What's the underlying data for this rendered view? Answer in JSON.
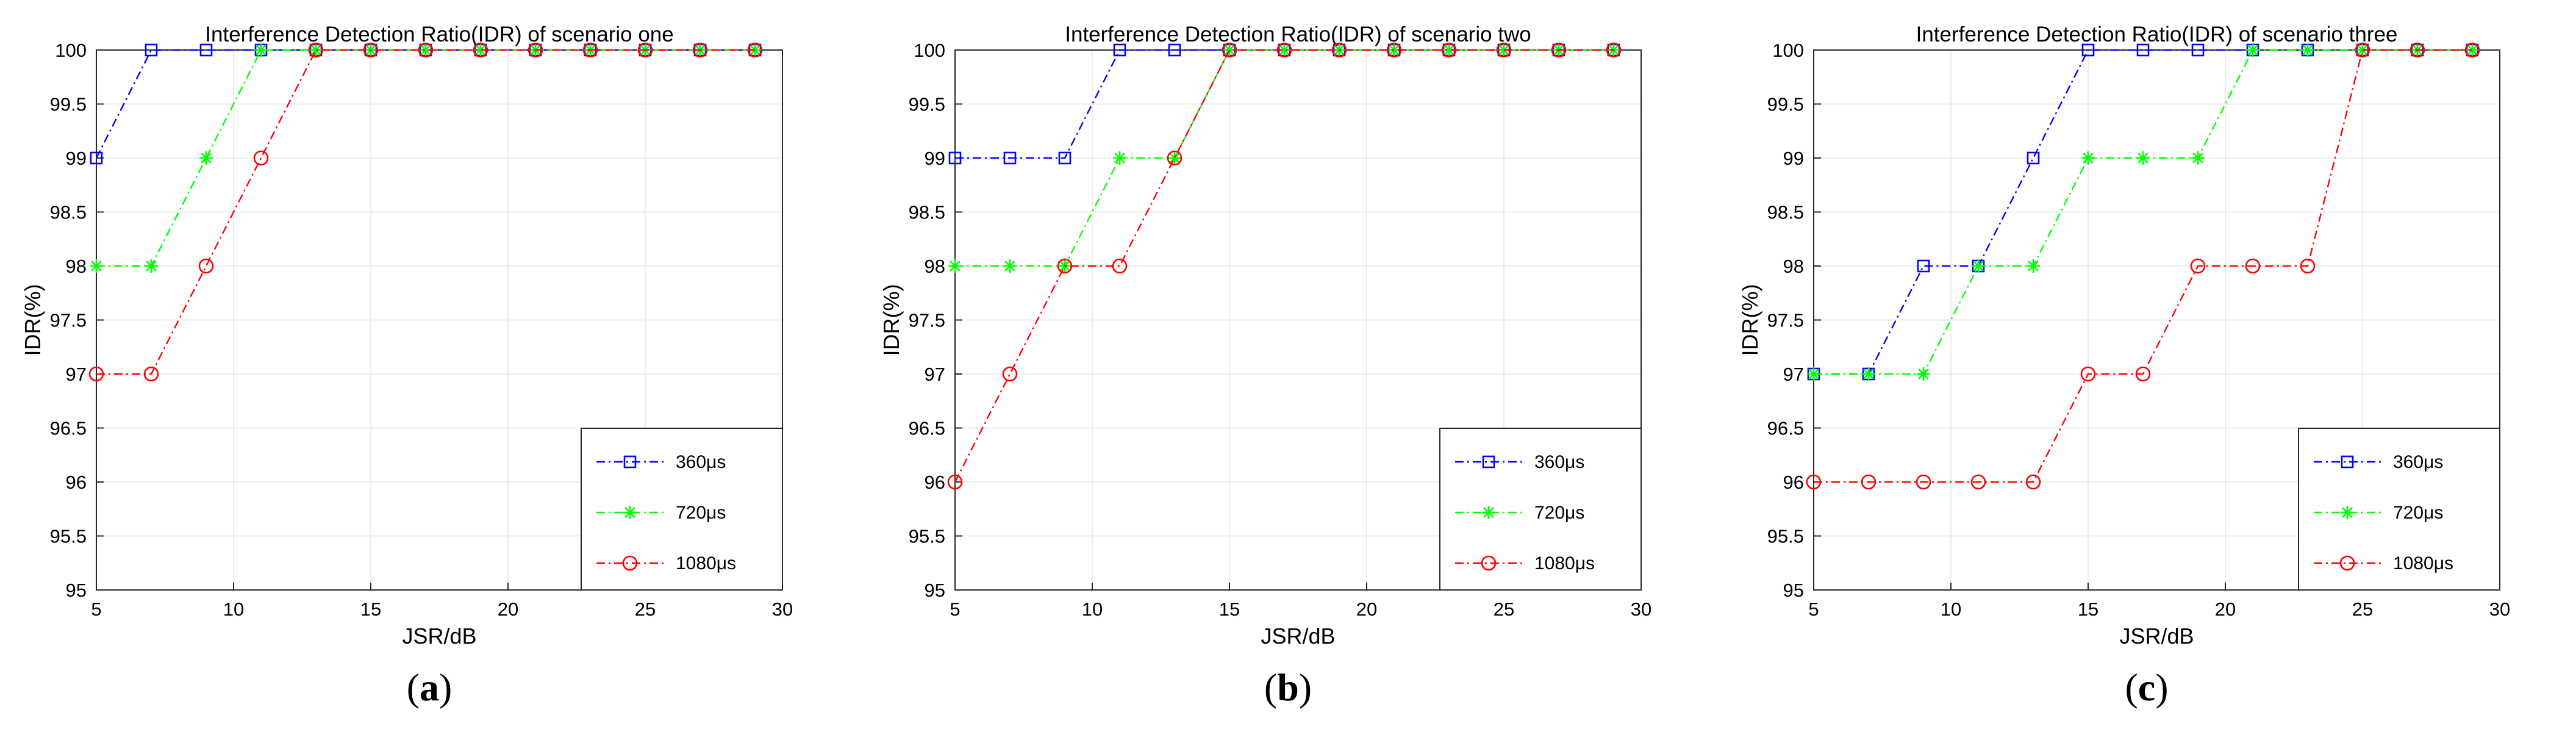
{
  "colors": {
    "series_360": "#0000ff",
    "series_720": "#00ff00",
    "series_1080": "#ff0000",
    "grid": "#e6e6e6",
    "axis": "#262626"
  },
  "panels": [
    {
      "letter_open": "(",
      "letter": "a",
      "letter_close": ")"
    },
    {
      "letter_open": "(",
      "letter": "b",
      "letter_close": ")"
    },
    {
      "letter_open": "(",
      "letter": "c",
      "letter_close": ")"
    }
  ],
  "chart_data": [
    {
      "type": "line",
      "title": "Interference Detection Ratio(IDR) of scenario one",
      "xlabel": "JSR/dB",
      "ylabel": "IDR(%)",
      "xlim": [
        5,
        30
      ],
      "ylim": [
        95,
        100
      ],
      "xticks": [
        5,
        10,
        15,
        20,
        25,
        30
      ],
      "yticks": [
        95,
        95.5,
        96,
        96.5,
        97,
        97.5,
        98,
        98.5,
        99,
        99.5,
        100
      ],
      "grid": true,
      "legend_position": "bottom-right",
      "x": [
        5,
        7,
        9,
        11,
        13,
        15,
        17,
        19,
        21,
        23,
        25,
        27,
        29
      ],
      "series": [
        {
          "name": "360μs",
          "marker": "square",
          "color": "#0000ff",
          "values": [
            99,
            100,
            100,
            100,
            100,
            100,
            100,
            100,
            100,
            100,
            100,
            100,
            100
          ]
        },
        {
          "name": "720μs",
          "marker": "asterisk",
          "color": "#00ff00",
          "values": [
            98,
            98,
            99,
            100,
            100,
            100,
            100,
            100,
            100,
            100,
            100,
            100,
            100
          ]
        },
        {
          "name": "1080μs",
          "marker": "circle",
          "color": "#ff0000",
          "values": [
            97,
            97,
            98,
            99,
            100,
            100,
            100,
            100,
            100,
            100,
            100,
            100,
            100
          ]
        }
      ]
    },
    {
      "type": "line",
      "title": "Interference Detection Ratio(IDR) of scenario two",
      "xlabel": "JSR/dB",
      "ylabel": "IDR(%)",
      "xlim": [
        5,
        30
      ],
      "ylim": [
        95,
        100
      ],
      "xticks": [
        5,
        10,
        15,
        20,
        25,
        30
      ],
      "yticks": [
        95,
        95.5,
        96,
        96.5,
        97,
        97.5,
        98,
        98.5,
        99,
        99.5,
        100
      ],
      "grid": true,
      "legend_position": "bottom-right",
      "x": [
        5,
        7,
        9,
        11,
        13,
        15,
        17,
        19,
        21,
        23,
        25,
        27,
        29
      ],
      "series": [
        {
          "name": "360μs",
          "marker": "square",
          "color": "#0000ff",
          "values": [
            99,
            99,
            99,
            100,
            100,
            100,
            100,
            100,
            100,
            100,
            100,
            100,
            100
          ]
        },
        {
          "name": "720μs",
          "marker": "asterisk",
          "color": "#00ff00",
          "values": [
            98,
            98,
            98,
            99,
            99,
            100,
            100,
            100,
            100,
            100,
            100,
            100,
            100
          ]
        },
        {
          "name": "1080μs",
          "marker": "circle",
          "color": "#ff0000",
          "values": [
            96,
            97,
            98,
            98,
            99,
            100,
            100,
            100,
            100,
            100,
            100,
            100,
            100
          ]
        }
      ]
    },
    {
      "type": "line",
      "title": "Interference Detection Ratio(IDR) of scenario three",
      "xlabel": "JSR/dB",
      "ylabel": "IDR(%)",
      "xlim": [
        5,
        30
      ],
      "ylim": [
        95,
        100
      ],
      "xticks": [
        5,
        10,
        15,
        20,
        25,
        30
      ],
      "yticks": [
        95,
        95.5,
        96,
        96.5,
        97,
        97.5,
        98,
        98.5,
        99,
        99.5,
        100
      ],
      "grid": true,
      "legend_position": "bottom-right",
      "x": [
        5,
        7,
        9,
        11,
        13,
        15,
        17,
        19,
        21,
        23,
        25,
        27,
        29
      ],
      "series": [
        {
          "name": "360μs",
          "marker": "square",
          "color": "#0000ff",
          "values": [
            97,
            97,
            98,
            98,
            99,
            100,
            100,
            100,
            100,
            100,
            100,
            100,
            100
          ]
        },
        {
          "name": "720μs",
          "marker": "asterisk",
          "color": "#00ff00",
          "values": [
            97,
            97,
            97,
            98,
            98,
            99,
            99,
            99,
            100,
            100,
            100,
            100,
            100
          ]
        },
        {
          "name": "1080μs",
          "marker": "circle",
          "color": "#ff0000",
          "values": [
            96,
            96,
            96,
            96,
            96,
            97,
            97,
            98,
            98,
            98,
            100,
            100,
            100
          ]
        }
      ]
    }
  ]
}
